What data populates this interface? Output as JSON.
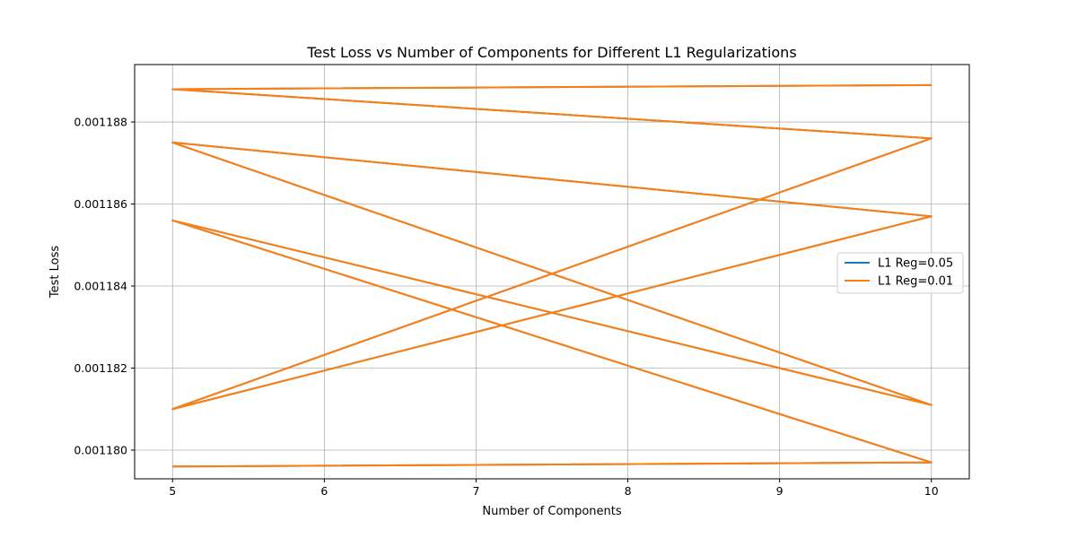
{
  "chart_data": {
    "type": "line",
    "title": "Test Loss vs Number of Components for Different L1 Regularizations",
    "xlabel": "Number of Components",
    "ylabel": "Test Loss",
    "xlim": [
      4.75,
      10.25
    ],
    "ylim": [
      0.0011793,
      0.0011894
    ],
    "xticks": [
      5,
      6,
      7,
      8,
      9,
      10
    ],
    "xtick_labels": [
      "5",
      "6",
      "7",
      "8",
      "9",
      "10"
    ],
    "yticks": [
      0.00118,
      0.001182,
      0.001184,
      0.001186,
      0.001188
    ],
    "ytick_labels": [
      "0.001180",
      "0.001182",
      "0.001184",
      "0.001186",
      "0.001188"
    ],
    "grid": true,
    "legend_position": "center-right",
    "series": [
      {
        "name": "L1 Reg=0.05",
        "color": "#1f77b4",
        "x": [
          5,
          10,
          5,
          10,
          5,
          10,
          5,
          10,
          5,
          10
        ],
        "y": [
          0.0011796,
          0.0011797,
          0.0011856,
          0.0011811,
          0.0011875,
          0.0011857,
          0.001181,
          0.0011876,
          0.0011888,
          0.0011889
        ]
      },
      {
        "name": "L1 Reg=0.01",
        "color": "#ff7f0e",
        "x": [
          5,
          10,
          5,
          10,
          5,
          10,
          5,
          10,
          5,
          10
        ],
        "y": [
          0.0011796,
          0.0011797,
          0.0011856,
          0.0011811,
          0.0011875,
          0.0011857,
          0.001181,
          0.0011876,
          0.0011888,
          0.0011889
        ]
      }
    ]
  }
}
